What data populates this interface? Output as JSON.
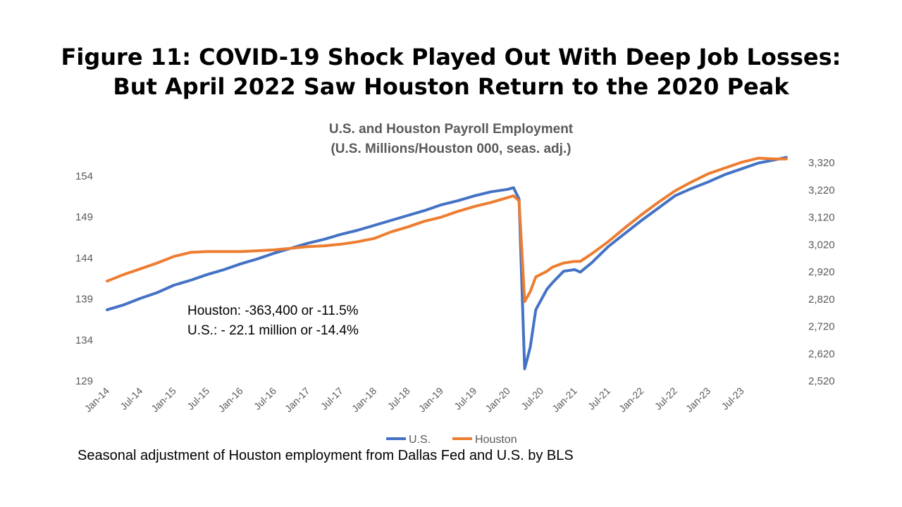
{
  "page_title_line1": "Figure 11: COVID-19 Shock Played Out With Deep Job Losses:",
  "page_title_line2": "But April 2022 Saw Houston Return to the 2020 Peak",
  "footnote": "Seasonal adjustment of Houston employment from Dallas Fed and U.S. by BLS",
  "chart_data": {
    "type": "line",
    "title": "U.S. and Houston Payroll Employment",
    "subtitle": "(U.S. Millions/Houston 000, seas. adj.)",
    "x_tick_labels": [
      "Jan-14",
      "Jul-14",
      "Jan-15",
      "Jul-15",
      "Jan-16",
      "Jul-16",
      "Jan-17",
      "Jul-17",
      "Jan-18",
      "Jul-18",
      "Jan-19",
      "Jul-19",
      "Jan-20",
      "Jul-20",
      "Jan-21",
      "Jul-21",
      "Jan-22",
      "Jul-22",
      "Jan-23",
      "Jul-23"
    ],
    "x_range": [
      "Jan-14",
      "Aug-23"
    ],
    "y_left": {
      "ticks": [
        "154",
        "149",
        "144",
        "139",
        "134",
        "129"
      ],
      "range": [
        129,
        155
      ]
    },
    "y_right": {
      "ticks": [
        "3,320",
        "3,220",
        "3,120",
        "3,020",
        "2,920",
        "2,820",
        "2,720",
        "2,620",
        "2,520"
      ],
      "range": [
        2520,
        3345
      ]
    },
    "grid": false,
    "legend_position": "bottom",
    "series": [
      {
        "name": "U.S.",
        "color": "#4472C4",
        "axis": "left",
        "points": [
          [
            0,
            137.6
          ],
          [
            3,
            138.2
          ],
          [
            6,
            139.0
          ],
          [
            9,
            139.7
          ],
          [
            12,
            140.6
          ],
          [
            15,
            141.2
          ],
          [
            18,
            141.9
          ],
          [
            21,
            142.5
          ],
          [
            24,
            143.2
          ],
          [
            27,
            143.8
          ],
          [
            30,
            144.5
          ],
          [
            33,
            145.1
          ],
          [
            36,
            145.7
          ],
          [
            39,
            146.2
          ],
          [
            42,
            146.8
          ],
          [
            45,
            147.3
          ],
          [
            48,
            147.9
          ],
          [
            51,
            148.5
          ],
          [
            54,
            149.1
          ],
          [
            57,
            149.7
          ],
          [
            60,
            150.4
          ],
          [
            63,
            150.9
          ],
          [
            66,
            151.5
          ],
          [
            69,
            152.0
          ],
          [
            72,
            152.3
          ],
          [
            73,
            152.5
          ],
          [
            74,
            151.1
          ],
          [
            75,
            130.4
          ],
          [
            76,
            133.0
          ],
          [
            77,
            137.6
          ],
          [
            79,
            140.1
          ],
          [
            80,
            140.9
          ],
          [
            82,
            142.3
          ],
          [
            84,
            142.5
          ],
          [
            85,
            142.2
          ],
          [
            87,
            143.3
          ],
          [
            90,
            145.3
          ],
          [
            93,
            146.9
          ],
          [
            96,
            148.5
          ],
          [
            99,
            150.0
          ],
          [
            102,
            151.5
          ],
          [
            105,
            152.4
          ],
          [
            108,
            153.2
          ],
          [
            111,
            154.1
          ],
          [
            114,
            154.8
          ],
          [
            117,
            155.5
          ],
          [
            120,
            155.9
          ],
          [
            122,
            156.2
          ]
        ]
      },
      {
        "name": "Houston",
        "color": "#ED7D31",
        "axis": "left",
        "points": [
          [
            0,
            141.1
          ],
          [
            3,
            141.9
          ],
          [
            6,
            142.6
          ],
          [
            9,
            143.3
          ],
          [
            12,
            144.1
          ],
          [
            15,
            144.6
          ],
          [
            18,
            144.7
          ],
          [
            21,
            144.7
          ],
          [
            24,
            144.7
          ],
          [
            27,
            144.8
          ],
          [
            30,
            144.9
          ],
          [
            33,
            145.1
          ],
          [
            36,
            145.3
          ],
          [
            39,
            145.4
          ],
          [
            42,
            145.6
          ],
          [
            45,
            145.9
          ],
          [
            48,
            146.3
          ],
          [
            51,
            147.1
          ],
          [
            54,
            147.7
          ],
          [
            57,
            148.4
          ],
          [
            60,
            148.9
          ],
          [
            63,
            149.6
          ],
          [
            66,
            150.2
          ],
          [
            69,
            150.7
          ],
          [
            72,
            151.3
          ],
          [
            73,
            151.5
          ],
          [
            74,
            150.9
          ],
          [
            75,
            138.6
          ],
          [
            76,
            139.8
          ],
          [
            77,
            141.6
          ],
          [
            79,
            142.3
          ],
          [
            80,
            142.8
          ],
          [
            82,
            143.3
          ],
          [
            84,
            143.5
          ],
          [
            85,
            143.5
          ],
          [
            87,
            144.4
          ],
          [
            90,
            145.9
          ],
          [
            93,
            147.6
          ],
          [
            96,
            149.2
          ],
          [
            99,
            150.7
          ],
          [
            102,
            152.1
          ],
          [
            105,
            153.2
          ],
          [
            108,
            154.2
          ],
          [
            111,
            154.9
          ],
          [
            114,
            155.6
          ],
          [
            117,
            156.1
          ],
          [
            120,
            156.0
          ],
          [
            122,
            156.0
          ]
        ]
      }
    ],
    "annotation_lines": [
      "Houston: -363,400 or -11.5%",
      "U.S.: - 22.1 million or -14.4%"
    ]
  }
}
